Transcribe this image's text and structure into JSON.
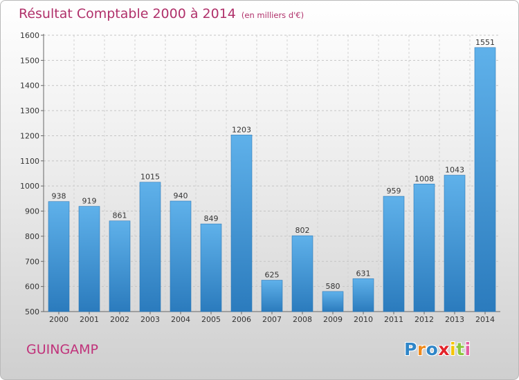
{
  "title": "Résultat Comptable 2000 à 2014",
  "subtitle": "(en milliers d'€)",
  "city": "GUINGAMP",
  "logo": {
    "letters": [
      "P",
      "r",
      "o",
      "x",
      "i",
      "t",
      "i"
    ],
    "colors": [
      "#2f86c8",
      "#f08a1c",
      "#2f86c8",
      "#e3242b",
      "#f4c400",
      "#8cc63e",
      "#e45ca0"
    ]
  },
  "colors": {
    "title": "#b0306a",
    "bar_light": "#5fb1ea",
    "bar_dark": "#2b7bbd"
  },
  "chart_data": {
    "type": "bar",
    "title": "Résultat Comptable 2000 à 2014",
    "subtitle": "(en milliers d'€)",
    "xlabel": "",
    "ylabel": "",
    "categories": [
      "2000",
      "2001",
      "2002",
      "2003",
      "2004",
      "2005",
      "2006",
      "2007",
      "2008",
      "2009",
      "2010",
      "2011",
      "2012",
      "2013",
      "2014"
    ],
    "values": [
      938,
      919,
      861,
      1015,
      940,
      849,
      1203,
      625,
      802,
      580,
      631,
      959,
      1008,
      1043,
      1551
    ],
    "ylim": [
      500,
      1600
    ],
    "yticks": [
      500,
      600,
      700,
      800,
      900,
      1000,
      1100,
      1200,
      1300,
      1400,
      1500,
      1600
    ],
    "grid": true,
    "data_labels": true
  }
}
